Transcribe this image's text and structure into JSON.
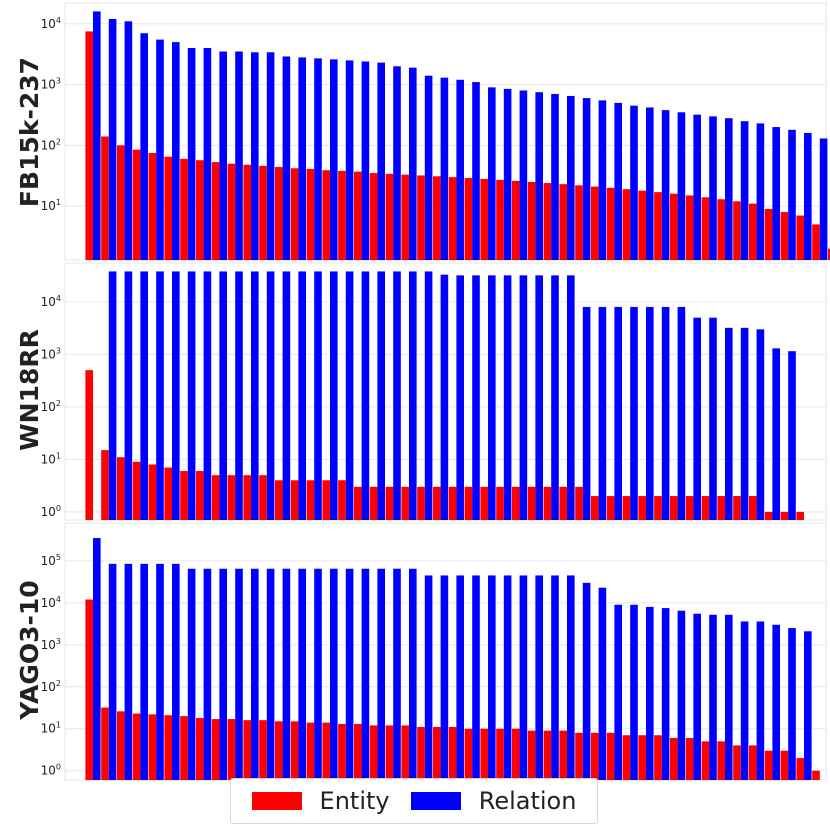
{
  "colors": {
    "entity": "#ff0000",
    "relation": "#0000ff",
    "grid": "#e6e6e6"
  },
  "legend": {
    "entity_label": "Entity",
    "relation_label": "Relation"
  },
  "chart_data": [
    {
      "type": "bar",
      "title": "FB15k-237",
      "yscale": "log",
      "ylim": [
        1.3,
        22000
      ],
      "yticks": [
        {
          "base": "10",
          "exp": "1",
          "value": 10
        },
        {
          "base": "10",
          "exp": "2",
          "value": 100
        },
        {
          "base": "10",
          "exp": "3",
          "value": 1000
        },
        {
          "base": "10",
          "exp": "4",
          "value": 10000
        }
      ],
      "series": [
        {
          "name": "Entity",
          "values": [
            7500,
            140,
            100,
            85,
            75,
            65,
            60,
            57,
            53,
            50,
            48,
            46,
            44,
            42,
            41,
            39,
            38,
            37,
            35,
            34,
            33,
            32,
            31,
            30,
            29,
            28,
            27,
            26,
            25,
            24,
            23,
            22,
            21,
            20,
            19,
            18,
            17,
            16,
            15,
            14,
            13,
            12,
            11,
            9,
            8,
            7,
            5,
            2
          ]
        },
        {
          "name": "Relation",
          "values": [
            16000,
            12000,
            11000,
            7000,
            5500,
            5000,
            4000,
            4000,
            3500,
            3500,
            3400,
            3400,
            2900,
            2800,
            2700,
            2600,
            2500,
            2400,
            2300,
            2000,
            1900,
            1400,
            1300,
            1200,
            1100,
            900,
            850,
            800,
            750,
            700,
            650,
            600,
            550,
            500,
            450,
            420,
            380,
            350,
            320,
            300,
            280,
            250,
            230,
            200,
            180,
            160,
            130,
            100
          ]
        }
      ]
    },
    {
      "type": "bar",
      "title": "WN18RR",
      "yscale": "log",
      "ylim": [
        0.7,
        55000
      ],
      "yticks": [
        {
          "base": "10",
          "exp": "0",
          "value": 1
        },
        {
          "base": "10",
          "exp": "1",
          "value": 10
        },
        {
          "base": "10",
          "exp": "2",
          "value": 100
        },
        {
          "base": "10",
          "exp": "3",
          "value": 1000
        },
        {
          "base": "10",
          "exp": "4",
          "value": 10000
        }
      ],
      "series": [
        {
          "name": "Entity",
          "values": [
            500,
            15,
            11,
            9,
            8,
            7,
            6,
            6,
            5,
            5,
            5,
            5,
            4,
            4,
            4,
            4,
            4,
            3,
            3,
            3,
            3,
            3,
            3,
            3,
            3,
            3,
            3,
            3,
            3,
            3,
            3,
            3,
            2,
            2,
            2,
            2,
            2,
            2,
            2,
            2,
            2,
            2,
            2,
            1,
            1,
            1
          ]
        },
        {
          "name": "Relation",
          "values": [
            0,
            38000,
            38000,
            38000,
            38000,
            38000,
            38000,
            38000,
            38000,
            38000,
            38000,
            38000,
            38000,
            38000,
            38000,
            38000,
            38000,
            38000,
            38000,
            38000,
            38000,
            38000,
            33000,
            32000,
            32000,
            32000,
            32000,
            32000,
            32000,
            32000,
            32000,
            8000,
            8000,
            8000,
            8000,
            8000,
            8000,
            8000,
            5000,
            5000,
            3200,
            3200,
            3000,
            1300,
            1150
          ]
        }
      ]
    },
    {
      "type": "bar",
      "title": "YAGO3-10",
      "yscale": "log",
      "ylim": [
        0.6,
        800000
      ],
      "yticks": [
        {
          "base": "10",
          "exp": "0",
          "value": 1
        },
        {
          "base": "10",
          "exp": "1",
          "value": 10
        },
        {
          "base": "10",
          "exp": "2",
          "value": 100
        },
        {
          "base": "10",
          "exp": "3",
          "value": 1000
        },
        {
          "base": "10",
          "exp": "4",
          "value": 10000
        },
        {
          "base": "10",
          "exp": "5",
          "value": 100000
        }
      ],
      "series": [
        {
          "name": "Entity",
          "values": [
            12000,
            32,
            26,
            23,
            22,
            21,
            20,
            18,
            17,
            17,
            16,
            16,
            15,
            15,
            14,
            14,
            13,
            13,
            12,
            12,
            12,
            11,
            11,
            11,
            10,
            10,
            10,
            10,
            9,
            9,
            9,
            8,
            8,
            8,
            7,
            7,
            7,
            6,
            6,
            5,
            5,
            4,
            4,
            3,
            3,
            2,
            1
          ]
        },
        {
          "name": "Relation",
          "values": [
            350000,
            85000,
            85000,
            85000,
            85000,
            85000,
            65000,
            65000,
            65000,
            65000,
            65000,
            65000,
            65000,
            65000,
            65000,
            65000,
            65000,
            65000,
            65000,
            65000,
            65000,
            45000,
            45000,
            45000,
            45000,
            45000,
            45000,
            45000,
            45000,
            45000,
            45000,
            30000,
            23000,
            9000,
            9000,
            8000,
            7500,
            6500,
            5500,
            5200,
            5200,
            3600,
            3600,
            3000,
            2500,
            2100
          ]
        }
      ]
    }
  ]
}
